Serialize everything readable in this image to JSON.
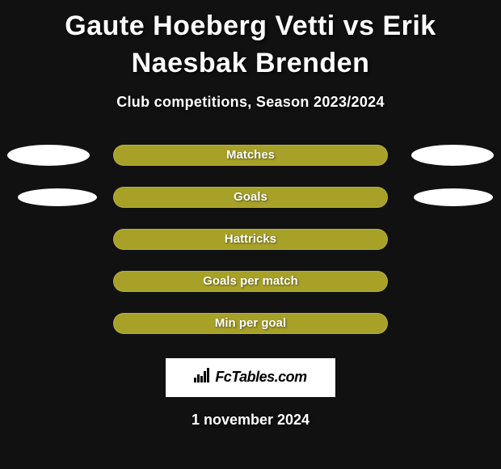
{
  "background_color": "#111111",
  "title": "Gaute Hoeberg Vetti vs Erik Naesbak Brenden",
  "title_color": "#ffffff",
  "title_fontsize": 34,
  "subtitle": "Club competitions, Season 2023/2024",
  "subtitle_color": "#ffffff",
  "subtitle_fontsize": 18,
  "rows": [
    {
      "label": "Matches",
      "pill_color": "#a8a128",
      "left_blob": true,
      "right_blob": true
    },
    {
      "label": "Goals",
      "pill_color": "#a8a128",
      "left_blob": true,
      "right_blob": true
    },
    {
      "label": "Hattricks",
      "pill_color": "#a8a128",
      "left_blob": false,
      "right_blob": false
    },
    {
      "label": "Goals per match",
      "pill_color": "#a8a128",
      "left_blob": false,
      "right_blob": false
    },
    {
      "label": "Min per goal",
      "pill_color": "#a8a128",
      "left_blob": false,
      "right_blob": false
    }
  ],
  "side_blob_color": "#ffffff",
  "logo_text": "FcTables.com",
  "logo_box_bg": "#ffffff",
  "date": "1 november 2024",
  "date_color": "#ffffff"
}
